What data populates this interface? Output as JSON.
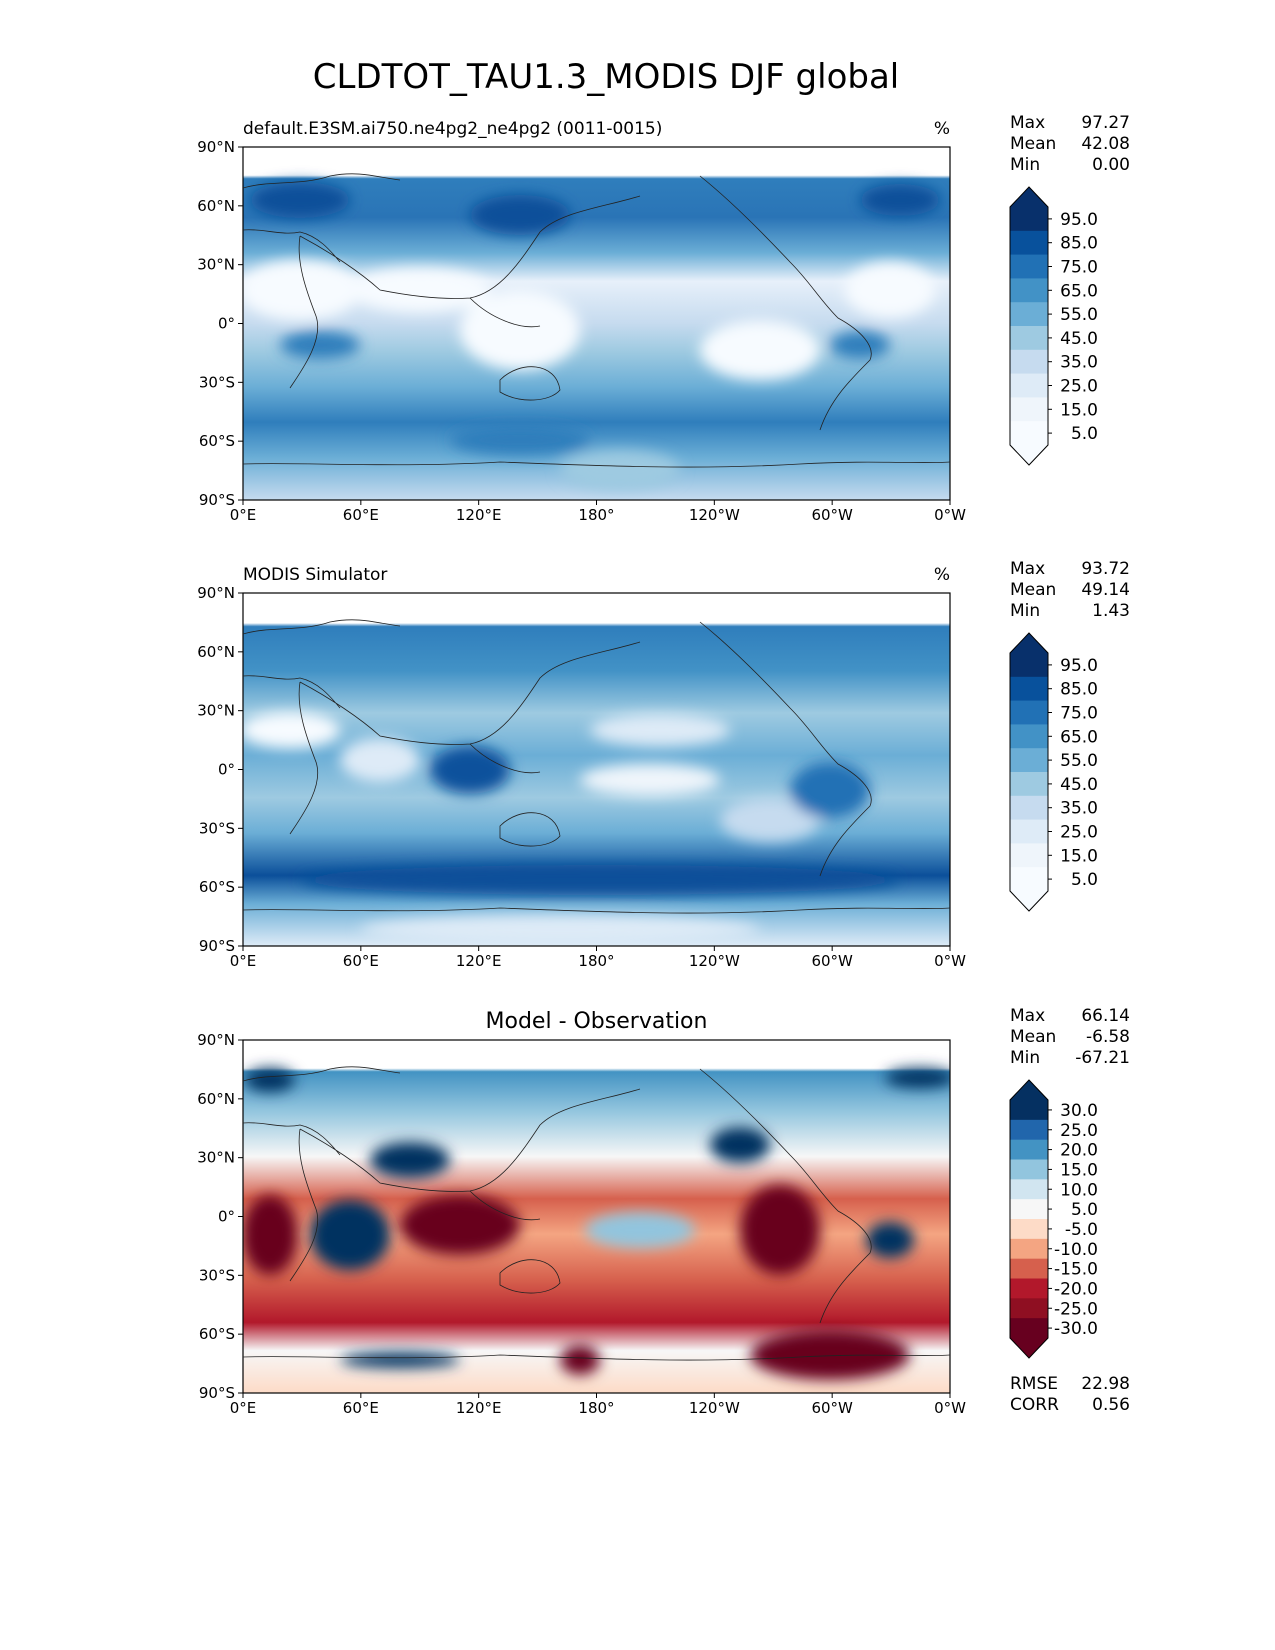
{
  "figure": {
    "title": "CLDTOT_TAU1.3_MODIS DJF global"
  },
  "chart_data": [
    {
      "type": "heatmap",
      "id": "test",
      "left_title": "default.E3SM.ai750.ne4pg2_ne4pg2 (0011-0015)",
      "center_title": "",
      "units": "%",
      "xticks": [
        "0°E",
        "60°E",
        "120°E",
        "180°",
        "120°W",
        "60°W",
        "0°W"
      ],
      "yticks": [
        "90°N",
        "60°N",
        "30°N",
        "0°",
        "30°S",
        "60°S",
        "90°S"
      ],
      "xlim": [
        0,
        360
      ],
      "ylim": [
        -90,
        90
      ],
      "stats": [
        {
          "label": "Max",
          "value": "97.27"
        },
        {
          "label": "Mean",
          "value": "42.08"
        },
        {
          "label": "Min",
          "value": "0.00"
        }
      ],
      "colorbar_labels": [
        "95.0",
        "85.0",
        "75.0",
        "65.0",
        "55.0",
        "45.0",
        "35.0",
        "25.0",
        "15.0",
        "5.0"
      ],
      "colormap": [
        "#08306b",
        "#08519c",
        "#2171b5",
        "#4292c6",
        "#6baed6",
        "#9ecae1",
        "#c6dbef",
        "#deebf7",
        "#eff5fb",
        "#f7fbff"
      ]
    },
    {
      "type": "heatmap",
      "id": "reference",
      "left_title": "MODIS Simulator",
      "center_title": "",
      "units": "%",
      "xticks": [
        "0°E",
        "60°E",
        "120°E",
        "180°",
        "120°W",
        "60°W",
        "0°W"
      ],
      "yticks": [
        "90°N",
        "60°N",
        "30°N",
        "0°",
        "30°S",
        "60°S",
        "90°S"
      ],
      "xlim": [
        0,
        360
      ],
      "ylim": [
        -90,
        90
      ],
      "stats": [
        {
          "label": "Max",
          "value": "93.72"
        },
        {
          "label": "Mean",
          "value": "49.14"
        },
        {
          "label": "Min",
          "value": "1.43"
        }
      ],
      "colorbar_labels": [
        "95.0",
        "85.0",
        "75.0",
        "65.0",
        "55.0",
        "45.0",
        "35.0",
        "25.0",
        "15.0",
        "5.0"
      ],
      "colormap": [
        "#08306b",
        "#08519c",
        "#2171b5",
        "#4292c6",
        "#6baed6",
        "#9ecae1",
        "#c6dbef",
        "#deebf7",
        "#eff5fb",
        "#f7fbff"
      ]
    },
    {
      "type": "heatmap",
      "id": "difference",
      "left_title": "",
      "center_title": "Model - Observation",
      "units": "",
      "xticks": [
        "0°E",
        "60°E",
        "120°E",
        "180°",
        "120°W",
        "60°W",
        "0°W"
      ],
      "yticks": [
        "90°N",
        "60°N",
        "30°N",
        "0°",
        "30°S",
        "60°S",
        "90°S"
      ],
      "xlim": [
        0,
        360
      ],
      "ylim": [
        -90,
        90
      ],
      "stats": [
        {
          "label": "Max",
          "value": "66.14"
        },
        {
          "label": "Mean",
          "value": "-6.58"
        },
        {
          "label": "Min",
          "value": "-67.21"
        }
      ],
      "metrics": [
        {
          "label": "RMSE",
          "value": "22.98"
        },
        {
          "label": "CORR",
          "value": "0.56"
        }
      ],
      "colorbar_labels": [
        "30.0",
        "25.0",
        "20.0",
        "15.0",
        "10.0",
        "5.0",
        "-5.0",
        "-10.0",
        "-15.0",
        "-20.0",
        "-25.0",
        "-30.0"
      ],
      "colormap": [
        "#053061",
        "#2166ac",
        "#4393c3",
        "#92c5de",
        "#d1e5f0",
        "#f7f7f7",
        "#fddbc7",
        "#f4a582",
        "#d6604d",
        "#b2182b",
        "#8f0f22",
        "#67001f"
      ]
    }
  ]
}
